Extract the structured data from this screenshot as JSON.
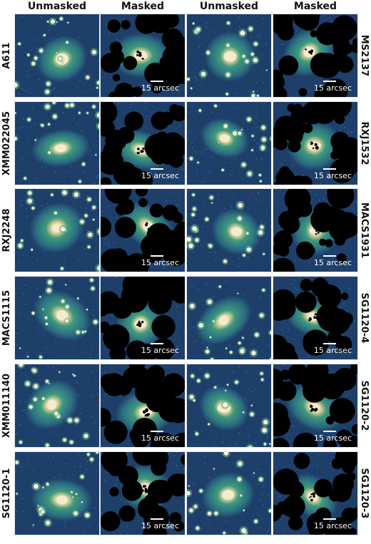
{
  "headers": [
    "Unmasked",
    "Masked",
    "Unmasked",
    "Masked"
  ],
  "scale_text": "15 arcsec",
  "rows": [
    {
      "left": "A611",
      "right": "MS2137"
    },
    {
      "left": "XMM022045",
      "right": "RXJ1532"
    },
    {
      "left": "RXJ2248",
      "right": "MACS1931"
    },
    {
      "left": "MACS1115",
      "right": "SG1120-4"
    },
    {
      "left": "XMM011140",
      "right": "SG1120-2"
    },
    {
      "left": "SG1120-1",
      "right": "SG1120-3"
    }
  ],
  "colors": {
    "background_noise": "#1e3f6a",
    "halo": "#3f9a7c",
    "core": "#f4ecd0",
    "mask": "#000000"
  }
}
